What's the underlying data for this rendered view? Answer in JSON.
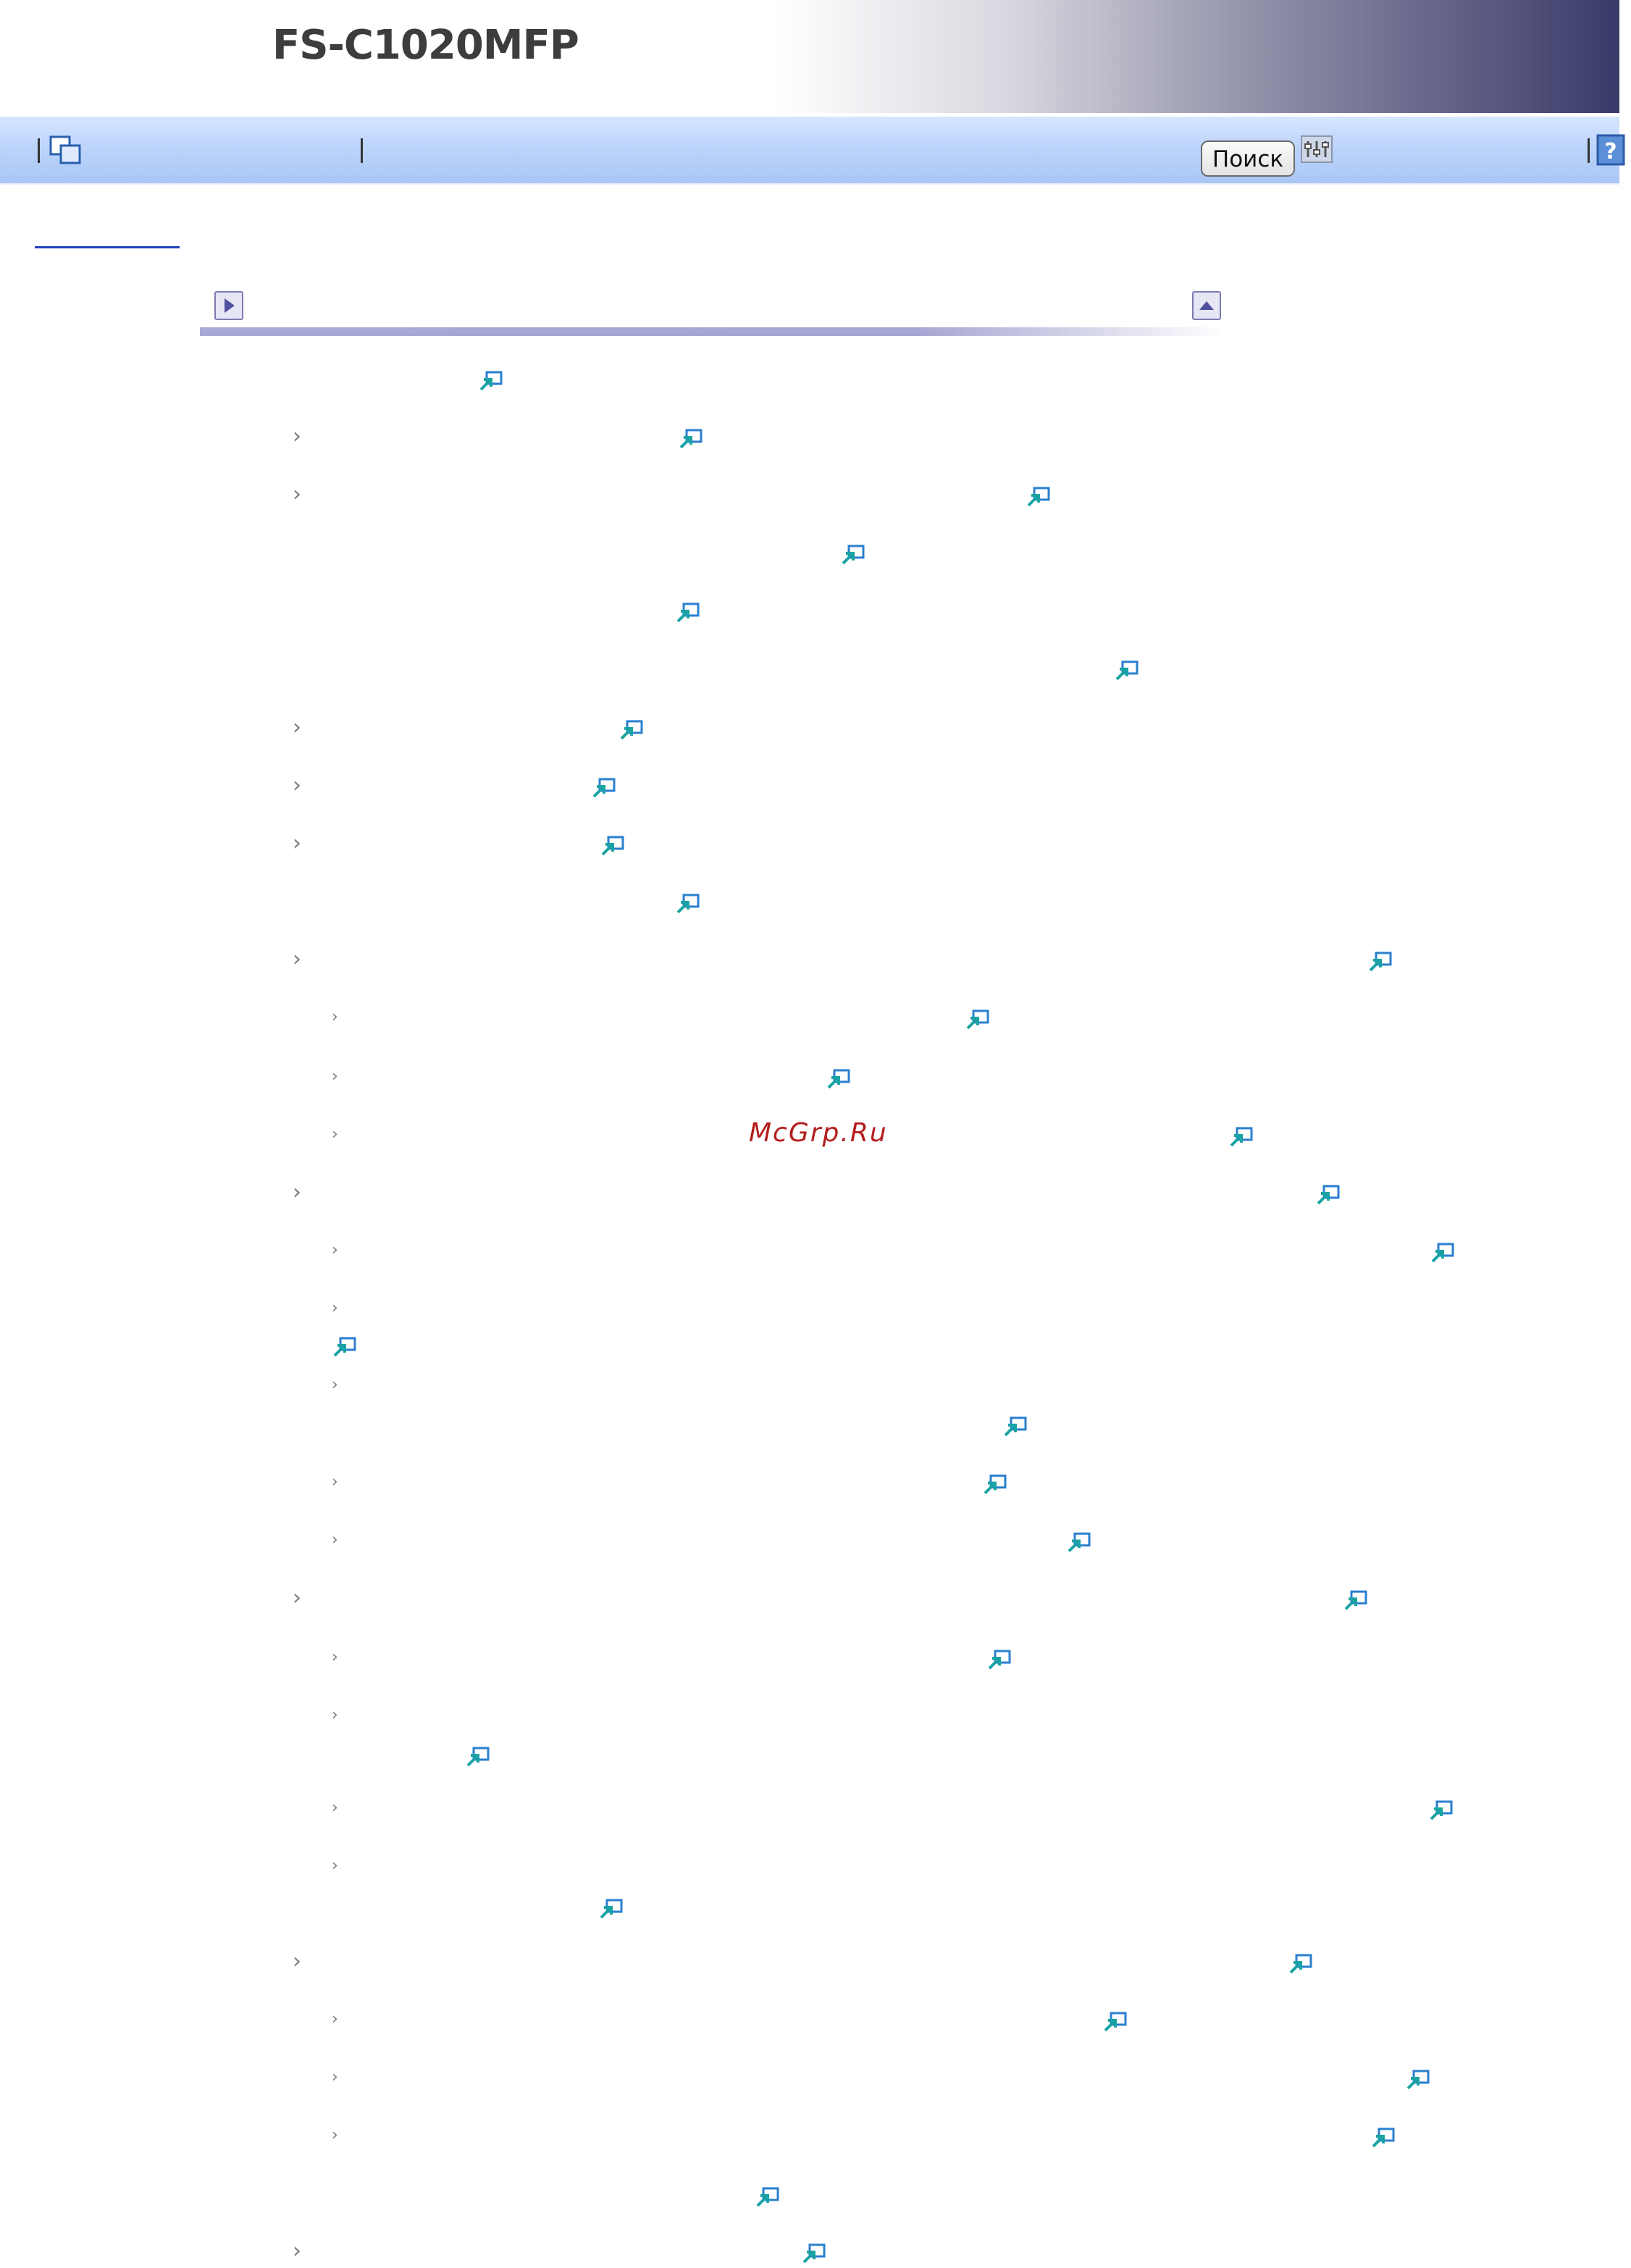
{
  "app": {
    "title": "FS-C1020MFP"
  },
  "toolbar": {
    "search_label": "Поиск"
  },
  "watermark": "McGrp.Ru",
  "colors": {
    "accent": "#a8a8d4",
    "link_icon_blue": "#2a7fd0",
    "link_icon_teal": "#1aa3a3",
    "watermark": "#b41e1e"
  },
  "icons": {
    "toolbar_left": "copy-pages-icon",
    "toolbar_right": "help-icon",
    "toolbar_search_aux": "search-options-icon",
    "nav_next": "arrow-right-icon",
    "nav_top": "arrow-up-icon",
    "row_link": "link-jump-icon",
    "row_bullet": "chevron-right-icon"
  },
  "toc": {
    "rows": [
      {
        "level": 0,
        "bullet": false,
        "label": ""
      },
      {
        "level": 1,
        "bullet": true,
        "label": ""
      },
      {
        "level": 1,
        "bullet": true,
        "label": ""
      },
      {
        "level": 2,
        "bullet": false,
        "label": ""
      },
      {
        "level": 2,
        "bullet": false,
        "label": ""
      },
      {
        "level": 2,
        "bullet": false,
        "label": ""
      },
      {
        "level": 1,
        "bullet": true,
        "label": ""
      },
      {
        "level": 1,
        "bullet": true,
        "label": ""
      },
      {
        "level": 1,
        "bullet": true,
        "label": ""
      },
      {
        "level": 2,
        "bullet": false,
        "label": ""
      },
      {
        "level": 1,
        "bullet": true,
        "label": ""
      },
      {
        "level": 2,
        "bullet": true,
        "label": ""
      },
      {
        "level": 2,
        "bullet": true,
        "label": ""
      },
      {
        "level": 2,
        "bullet": true,
        "label": ""
      },
      {
        "level": 1,
        "bullet": true,
        "label": ""
      },
      {
        "level": 2,
        "bullet": true,
        "label": ""
      },
      {
        "level": 2,
        "bullet": true,
        "label": ""
      },
      {
        "level": 2,
        "bullet": true,
        "label": ""
      },
      {
        "level": 2,
        "bullet": true,
        "label": ""
      },
      {
        "level": 2,
        "bullet": true,
        "label": ""
      },
      {
        "level": 1,
        "bullet": true,
        "label": ""
      },
      {
        "level": 2,
        "bullet": true,
        "label": ""
      },
      {
        "level": 2,
        "bullet": true,
        "label": ""
      },
      {
        "level": 2,
        "bullet": true,
        "label": ""
      },
      {
        "level": 2,
        "bullet": true,
        "label": ""
      },
      {
        "level": 1,
        "bullet": true,
        "label": ""
      },
      {
        "level": 2,
        "bullet": true,
        "label": ""
      },
      {
        "level": 2,
        "bullet": true,
        "label": ""
      },
      {
        "level": 2,
        "bullet": true,
        "label": ""
      },
      {
        "level": 2,
        "bullet": false,
        "label": ""
      },
      {
        "level": 1,
        "bullet": true,
        "label": ""
      }
    ]
  }
}
